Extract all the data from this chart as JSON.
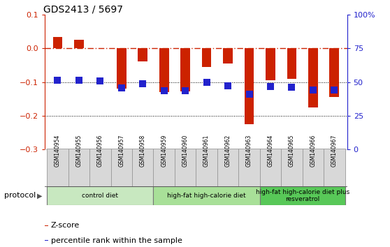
{
  "title": "GDS2413 / 5697",
  "samples": [
    "GSM140954",
    "GSM140955",
    "GSM140956",
    "GSM140957",
    "GSM140958",
    "GSM140959",
    "GSM140960",
    "GSM140961",
    "GSM140962",
    "GSM140963",
    "GSM140964",
    "GSM140965",
    "GSM140966",
    "GSM140967"
  ],
  "zscore": [
    0.034,
    0.026,
    0.002,
    -0.12,
    -0.038,
    -0.13,
    -0.128,
    -0.055,
    -0.045,
    -0.225,
    -0.095,
    -0.09,
    -0.175,
    -0.145
  ],
  "percentile": [
    -0.095,
    -0.095,
    -0.097,
    -0.118,
    -0.105,
    -0.126,
    -0.126,
    -0.1,
    -0.11,
    -0.135,
    -0.114,
    -0.115,
    -0.124,
    -0.124
  ],
  "zscore_color": "#cc2200",
  "percentile_color": "#2222cc",
  "ylim_left": [
    -0.3,
    0.1
  ],
  "yticks_left": [
    -0.3,
    -0.2,
    -0.1,
    0.0,
    0.1
  ],
  "ytick_labels_right": [
    "0",
    "25",
    "50",
    "75",
    "100%"
  ],
  "yticks_right": [
    0,
    25,
    50,
    75,
    100
  ],
  "hline_y": 0.0,
  "dotted_lines": [
    -0.1,
    -0.2
  ],
  "groups": [
    {
      "label": "control diet",
      "start": 0,
      "end": 4,
      "color": "#c8e8c0"
    },
    {
      "label": "high-fat high-calorie diet",
      "start": 5,
      "end": 9,
      "color": "#a8e098"
    },
    {
      "label": "high-fat high-calorie diet plus\nresveratrol",
      "start": 10,
      "end": 13,
      "color": "#58c858"
    }
  ],
  "bar_width": 0.45,
  "pct_marker_size": 60,
  "pct_marker": "s",
  "sample_box_color": "#d8d8d8",
  "group_border_color": "#777777",
  "legend_items": [
    {
      "color": "#cc2200",
      "label": "Z-score"
    },
    {
      "color": "#2222cc",
      "label": "percentile rank within the sample"
    }
  ]
}
